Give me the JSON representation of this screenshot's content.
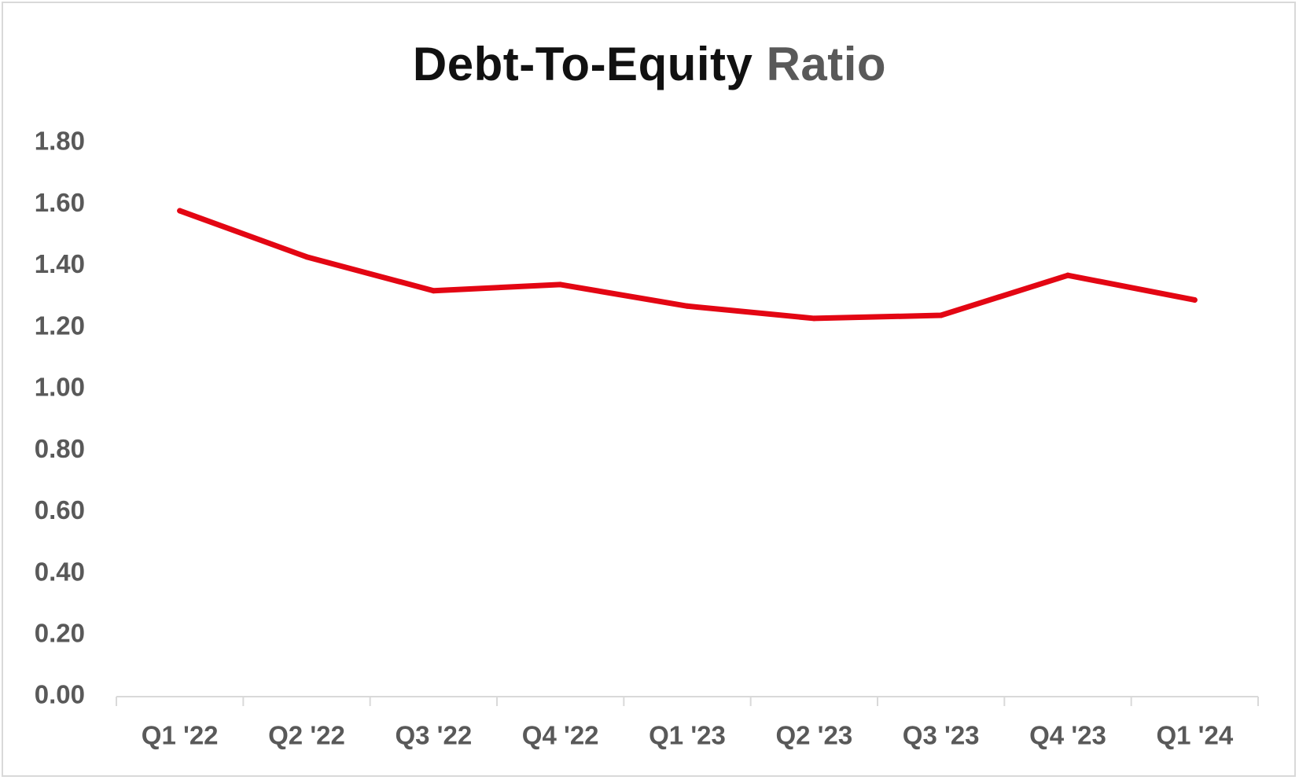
{
  "chart_data": {
    "type": "line",
    "title_parts": [
      "Debt-To-Equity",
      "Ratio"
    ],
    "categories": [
      "Q1 '22",
      "Q2 '22",
      "Q3 '22",
      "Q4 '22",
      "Q1 '23",
      "Q2 '23",
      "Q3 '23",
      "Q4 '23",
      "Q1 '24"
    ],
    "series": [
      {
        "values": [
          1.58,
          1.43,
          1.32,
          1.34,
          1.27,
          1.23,
          1.24,
          1.37,
          1.29
        ],
        "color": "#e30613"
      }
    ],
    "ylim": [
      0,
      1.8
    ],
    "yticks": [
      "0.00",
      "0.20",
      "0.40",
      "0.60",
      "0.80",
      "1.00",
      "1.20",
      "1.40",
      "1.60",
      "1.80"
    ],
    "grid": false,
    "legend": "none"
  }
}
